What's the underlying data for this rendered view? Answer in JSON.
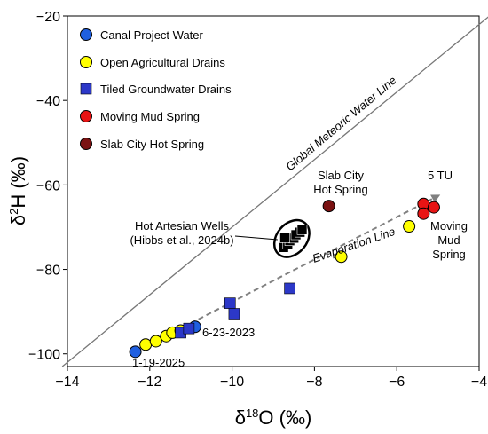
{
  "chart_data": {
    "type": "scatter",
    "xlabel": "δ18O (‰)",
    "ylabel": "δ2H (‰)",
    "xlim": [
      -14,
      -4
    ],
    "ylim": [
      -103,
      -20
    ],
    "x_ticks": [
      -14,
      -12,
      -10,
      -8,
      -6,
      -4
    ],
    "y_ticks": [
      -100,
      -80,
      -60,
      -40,
      -20
    ],
    "x_tick_labels": [
      "−14",
      "−12",
      "−10",
      "−8",
      "−6",
      "−4"
    ],
    "y_tick_labels": [
      "−100",
      "−80",
      "−60",
      "−40",
      "−20"
    ],
    "grid": false,
    "legend_position": "top-left",
    "series": [
      {
        "name": "Canal Project Water",
        "marker": "circle",
        "color": "#1f5fe0",
        "points": [
          [
            -12.35,
            -99.5
          ],
          [
            -10.9,
            -93.6
          ]
        ]
      },
      {
        "name": "Open Agricultural Drains",
        "marker": "circle",
        "color": "#ffff00",
        "points": [
          [
            -12.1,
            -97.8
          ],
          [
            -11.85,
            -97.0
          ],
          [
            -11.6,
            -95.8
          ],
          [
            -11.45,
            -95.0
          ],
          [
            -11.25,
            -94.5
          ],
          [
            -7.35,
            -77.0
          ],
          [
            -5.7,
            -69.8
          ]
        ]
      },
      {
        "name": "Tiled Groundwater Drains",
        "marker": "square",
        "color": "#2c38c8",
        "points": [
          [
            -11.25,
            -95.0
          ],
          [
            -11.05,
            -94.0
          ],
          [
            -10.05,
            -88.0
          ],
          [
            -9.95,
            -90.5
          ],
          [
            -8.6,
            -84.5
          ]
        ]
      },
      {
        "name": "Moving Mud Spring",
        "marker": "circle",
        "color": "#e81414",
        "points": [
          [
            -5.35,
            -64.5
          ],
          [
            -5.1,
            -65.3
          ],
          [
            -5.35,
            -66.8
          ]
        ]
      },
      {
        "name": "Slab City Hot Spring",
        "marker": "circle",
        "color": "#7a1212",
        "points": [
          [
            -7.65,
            -65.0
          ]
        ]
      }
    ],
    "hot_artesian_wells": {
      "marker": "square",
      "color": "#000000",
      "points": [
        [
          -8.75,
          -74.8
        ],
        [
          -8.65,
          -74.0
        ],
        [
          -8.6,
          -73.2
        ],
        [
          -8.5,
          -72.6
        ],
        [
          -8.45,
          -71.8
        ],
        [
          -8.35,
          -71.2
        ],
        [
          -8.3,
          -70.6
        ],
        [
          -8.72,
          -72.5
        ]
      ],
      "ellipse_center": [
        -8.55,
        -72.7
      ]
    },
    "lines": {
      "gmwl": {
        "label": "Global Meteoric Water Line",
        "slope": 8,
        "intercept": 10,
        "color": "#777777"
      },
      "evaporation": {
        "label": "Evaporation Line",
        "from": [
          -12.35,
          -99.5
        ],
        "to": [
          -5.0,
          -62.6
        ],
        "color": "#808080"
      }
    },
    "annotations": {
      "date_late": "6-23-2023",
      "date_early": "1-19-2025",
      "slab_line1": "Slab City",
      "slab_line2": "Hot Spring",
      "tu": "5 TU",
      "mm_line1": "Moving",
      "mm_line2": "Mud",
      "mm_line3": "Spring",
      "haw_line1": "Hot Artesian Wells",
      "haw_line2": "(Hibbs et al., 2024b)"
    }
  }
}
